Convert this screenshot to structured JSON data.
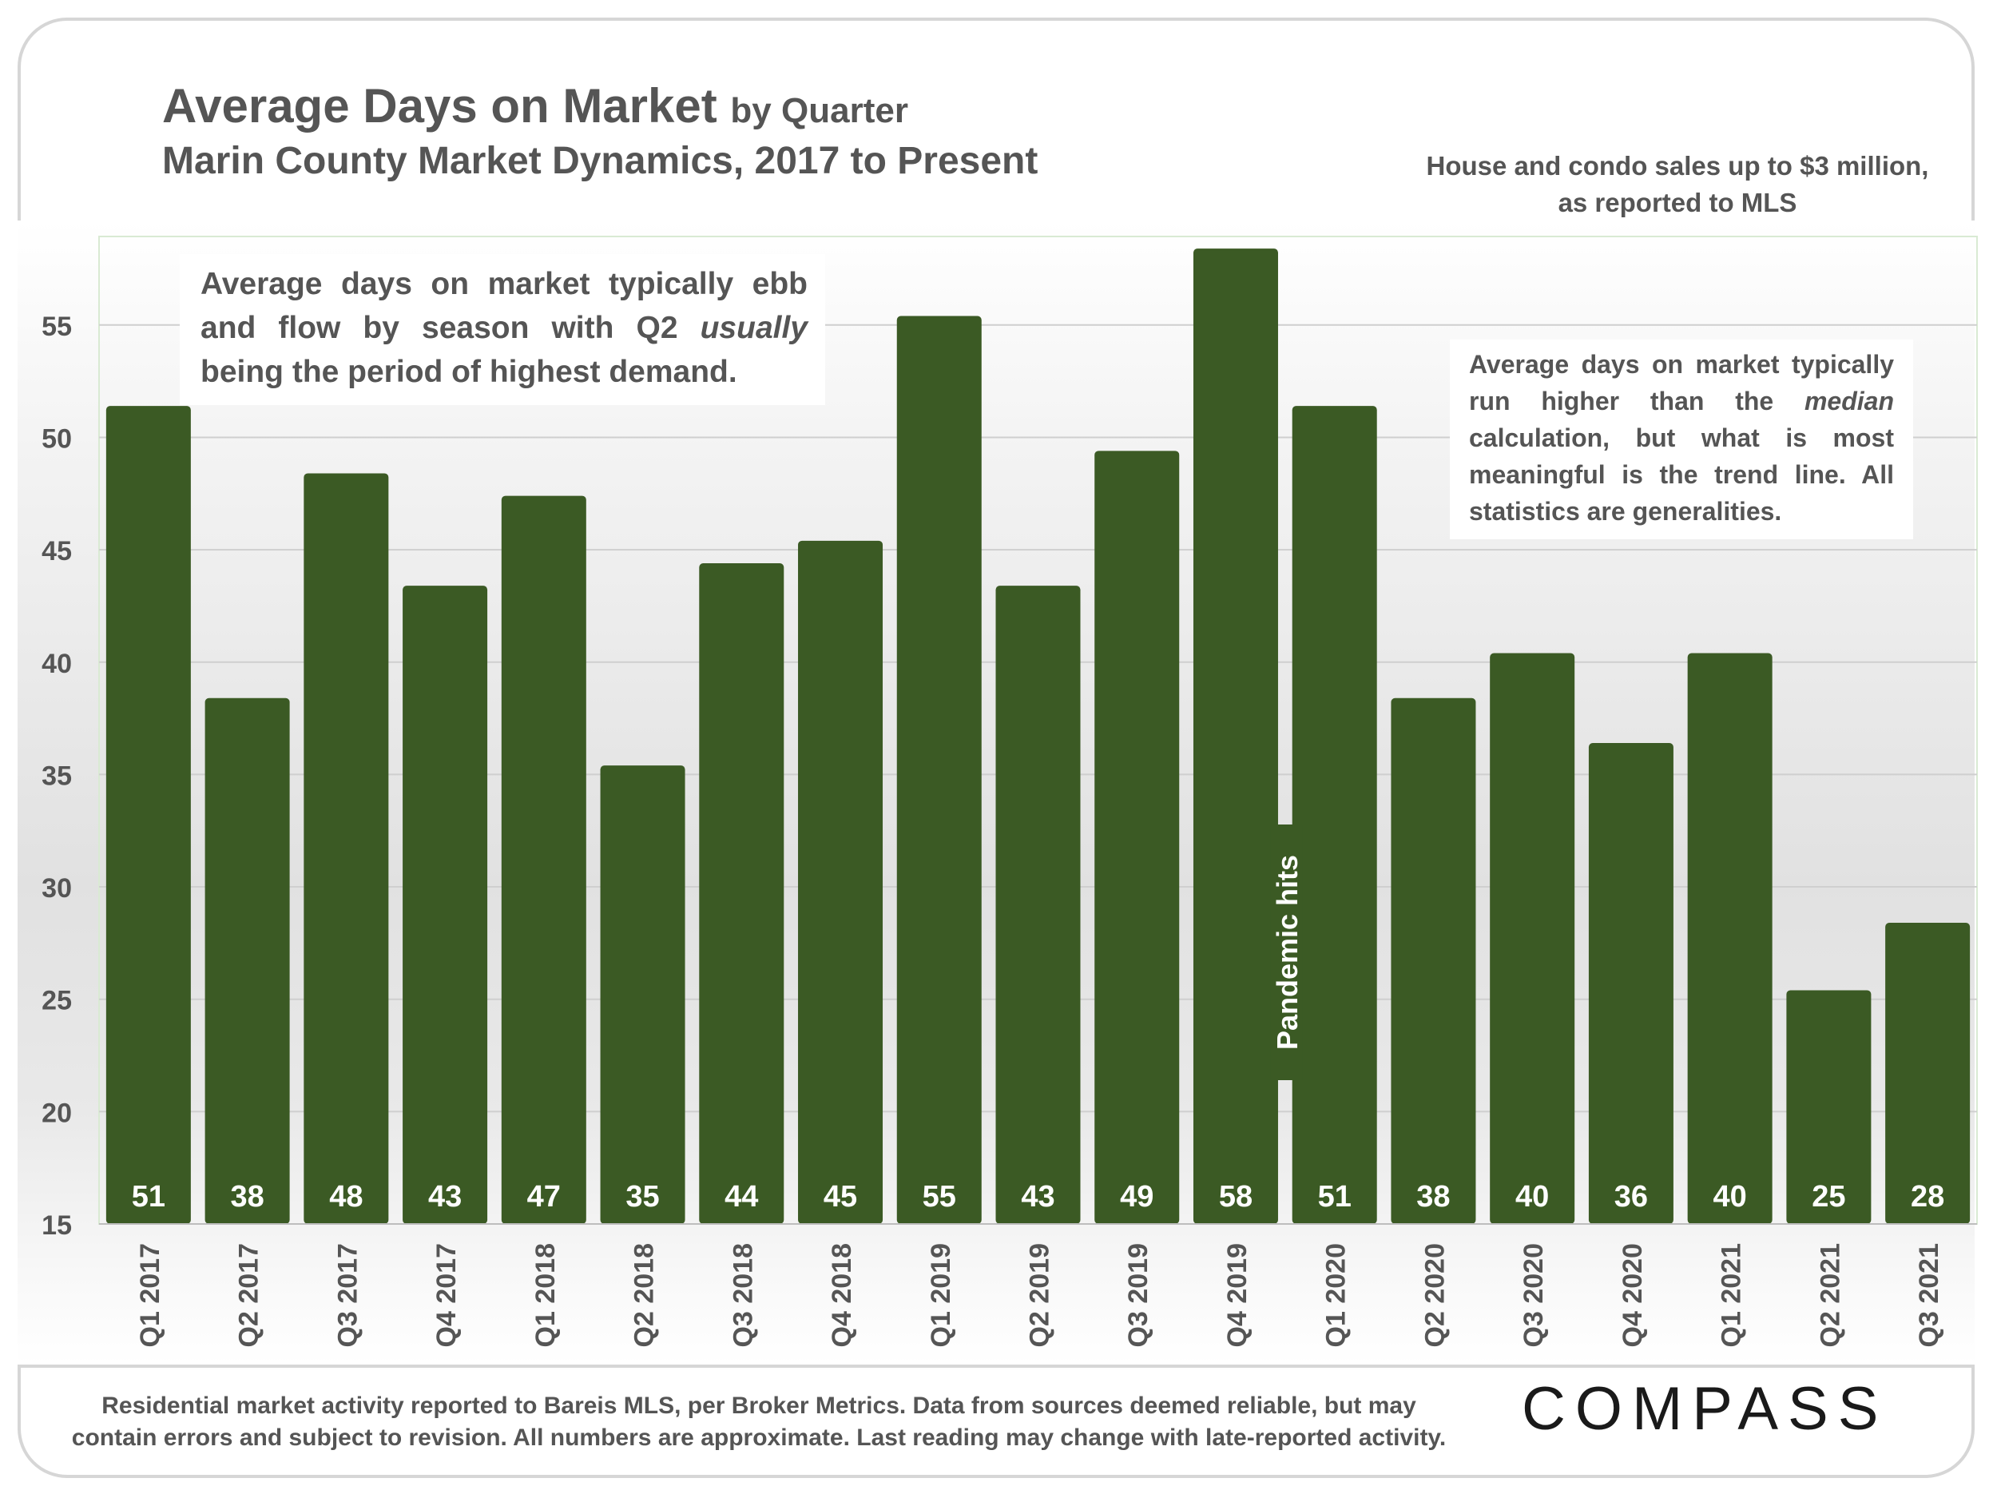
{
  "header": {
    "title": "Average Days on Market",
    "title_suffix": "by Quarter",
    "subtitle": "Marin County Market Dynamics, 2017 to Present",
    "note": "House and condo sales up to $3 million, as reported to MLS"
  },
  "annotations": {
    "left_before": "Average days on market typically ebb and flow by season with Q2 ",
    "left_emphasis": "usually",
    "left_after": " being the period of highest demand.",
    "right_before": "Average days on market typically run higher than the ",
    "right_emphasis": "median",
    "right_after": " calculation, but what is most meaningful is the trend line. All statistics are generalities.",
    "pandemic": "Pandemic hits"
  },
  "footer": {
    "text": "Residential market activity reported to Bareis MLS, per Broker Metrics. Data from sources deemed reliable, but may contain errors and subject to revision. All numbers are approximate. Last reading may change with late-reported activity.",
    "logo": "COMPASS"
  },
  "colors": {
    "bar": "#3b5a24",
    "bar_label": "#ffffff",
    "text": "#555555",
    "gridline": "#cfcfcf"
  },
  "chart_data": {
    "type": "bar",
    "title": "Average Days on Market by Quarter",
    "xlabel": "",
    "ylabel": "",
    "ylim": [
      15,
      59
    ],
    "yticks": [
      15,
      20,
      25,
      30,
      35,
      40,
      45,
      50,
      55
    ],
    "categories": [
      "Q1 2017",
      "Q2 2017",
      "Q3 2017",
      "Q4 2017",
      "Q1 2018",
      "Q2 2018",
      "Q3 2018",
      "Q4 2018",
      "Q1 2019",
      "Q2 2019",
      "Q3 2019",
      "Q4 2019",
      "Q1 2020",
      "Q2 2020",
      "Q3 2020",
      "Q4 2020",
      "Q1 2021",
      "Q2 2021",
      "Q3 2021"
    ],
    "values": [
      51.4,
      38.4,
      48.4,
      43.4,
      47.4,
      35.4,
      44.4,
      45.4,
      55.4,
      43.4,
      49.4,
      58.4,
      51.4,
      38.4,
      40.4,
      36.4,
      40.4,
      25.4,
      28.4
    ],
    "labels": [
      "51",
      "38",
      "48",
      "43",
      "47",
      "35",
      "44",
      "45",
      "55",
      "43",
      "49",
      "58",
      "51",
      "38",
      "40",
      "36",
      "40",
      "25",
      "28"
    ],
    "grid": true,
    "legend": "none"
  }
}
